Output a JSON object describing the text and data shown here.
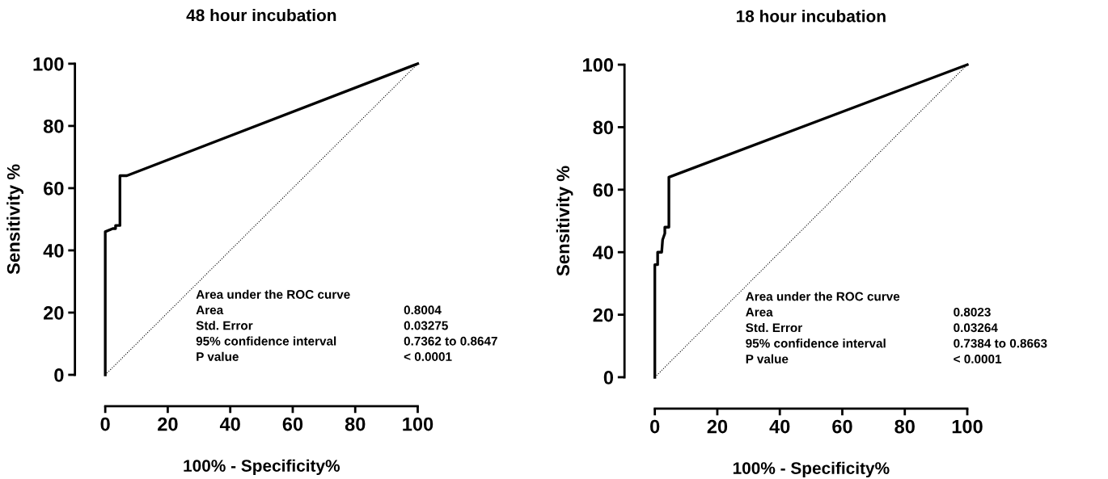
{
  "chart_data": [
    {
      "type": "line",
      "title": "48 hour incubation",
      "xlabel": "100% - Specificity%",
      "ylabel": "Sensitivity %",
      "xlim": [
        0,
        100
      ],
      "ylim": [
        0,
        100
      ],
      "xticks": [
        0,
        20,
        40,
        60,
        80,
        100
      ],
      "yticks": [
        0,
        20,
        40,
        60,
        80,
        100
      ],
      "grid": false,
      "legend": false,
      "series": [
        {
          "color": "#000000",
          "x": [
            0,
            0,
            2.4,
            3.3,
            3.3,
            4.7,
            4.7,
            6.9,
            100
          ],
          "values": [
            0,
            46,
            47,
            47,
            48,
            48,
            64,
            64,
            100
          ]
        },
        {
          "color": "#000000",
          "line_style": "dotted",
          "x": [
            0,
            100
          ],
          "values": [
            0,
            100
          ]
        }
      ],
      "annotations": [
        "Area under the ROC curve",
        "Area",
        "0.8004",
        "Std. Error",
        "0.03275",
        "95% confidence interval",
        "0.7362 to 0.8647",
        "P value",
        "< 0.0001"
      ]
    },
    {
      "type": "line",
      "title": "18 hour incubation",
      "xlabel": "100% - Specificity%",
      "ylabel": "Sensitivity %",
      "xlim": [
        0,
        100
      ],
      "ylim": [
        0,
        100
      ],
      "xticks": [
        0,
        20,
        40,
        60,
        80,
        100
      ],
      "yticks": [
        0,
        20,
        40,
        60,
        80,
        100
      ],
      "grid": false,
      "legend": false,
      "series": [
        {
          "color": "#000000",
          "x": [
            0,
            0,
            0.9,
            0.9,
            2.2,
            2.5,
            3.2,
            3.2,
            4.5,
            4.5,
            100
          ],
          "values": [
            0,
            36,
            36,
            40,
            40,
            44,
            46,
            48,
            48,
            64,
            100
          ]
        },
        {
          "color": "#000000",
          "line_style": "dotted",
          "x": [
            0,
            100
          ],
          "values": [
            0,
            100
          ]
        }
      ],
      "annotations": [
        "Area under the ROC curve",
        "Area",
        "0.8023",
        "Std. Error",
        "0.03264",
        "95% confidence interval",
        "0.7384 to 0.8663",
        "P value",
        "< 0.0001"
      ]
    }
  ]
}
